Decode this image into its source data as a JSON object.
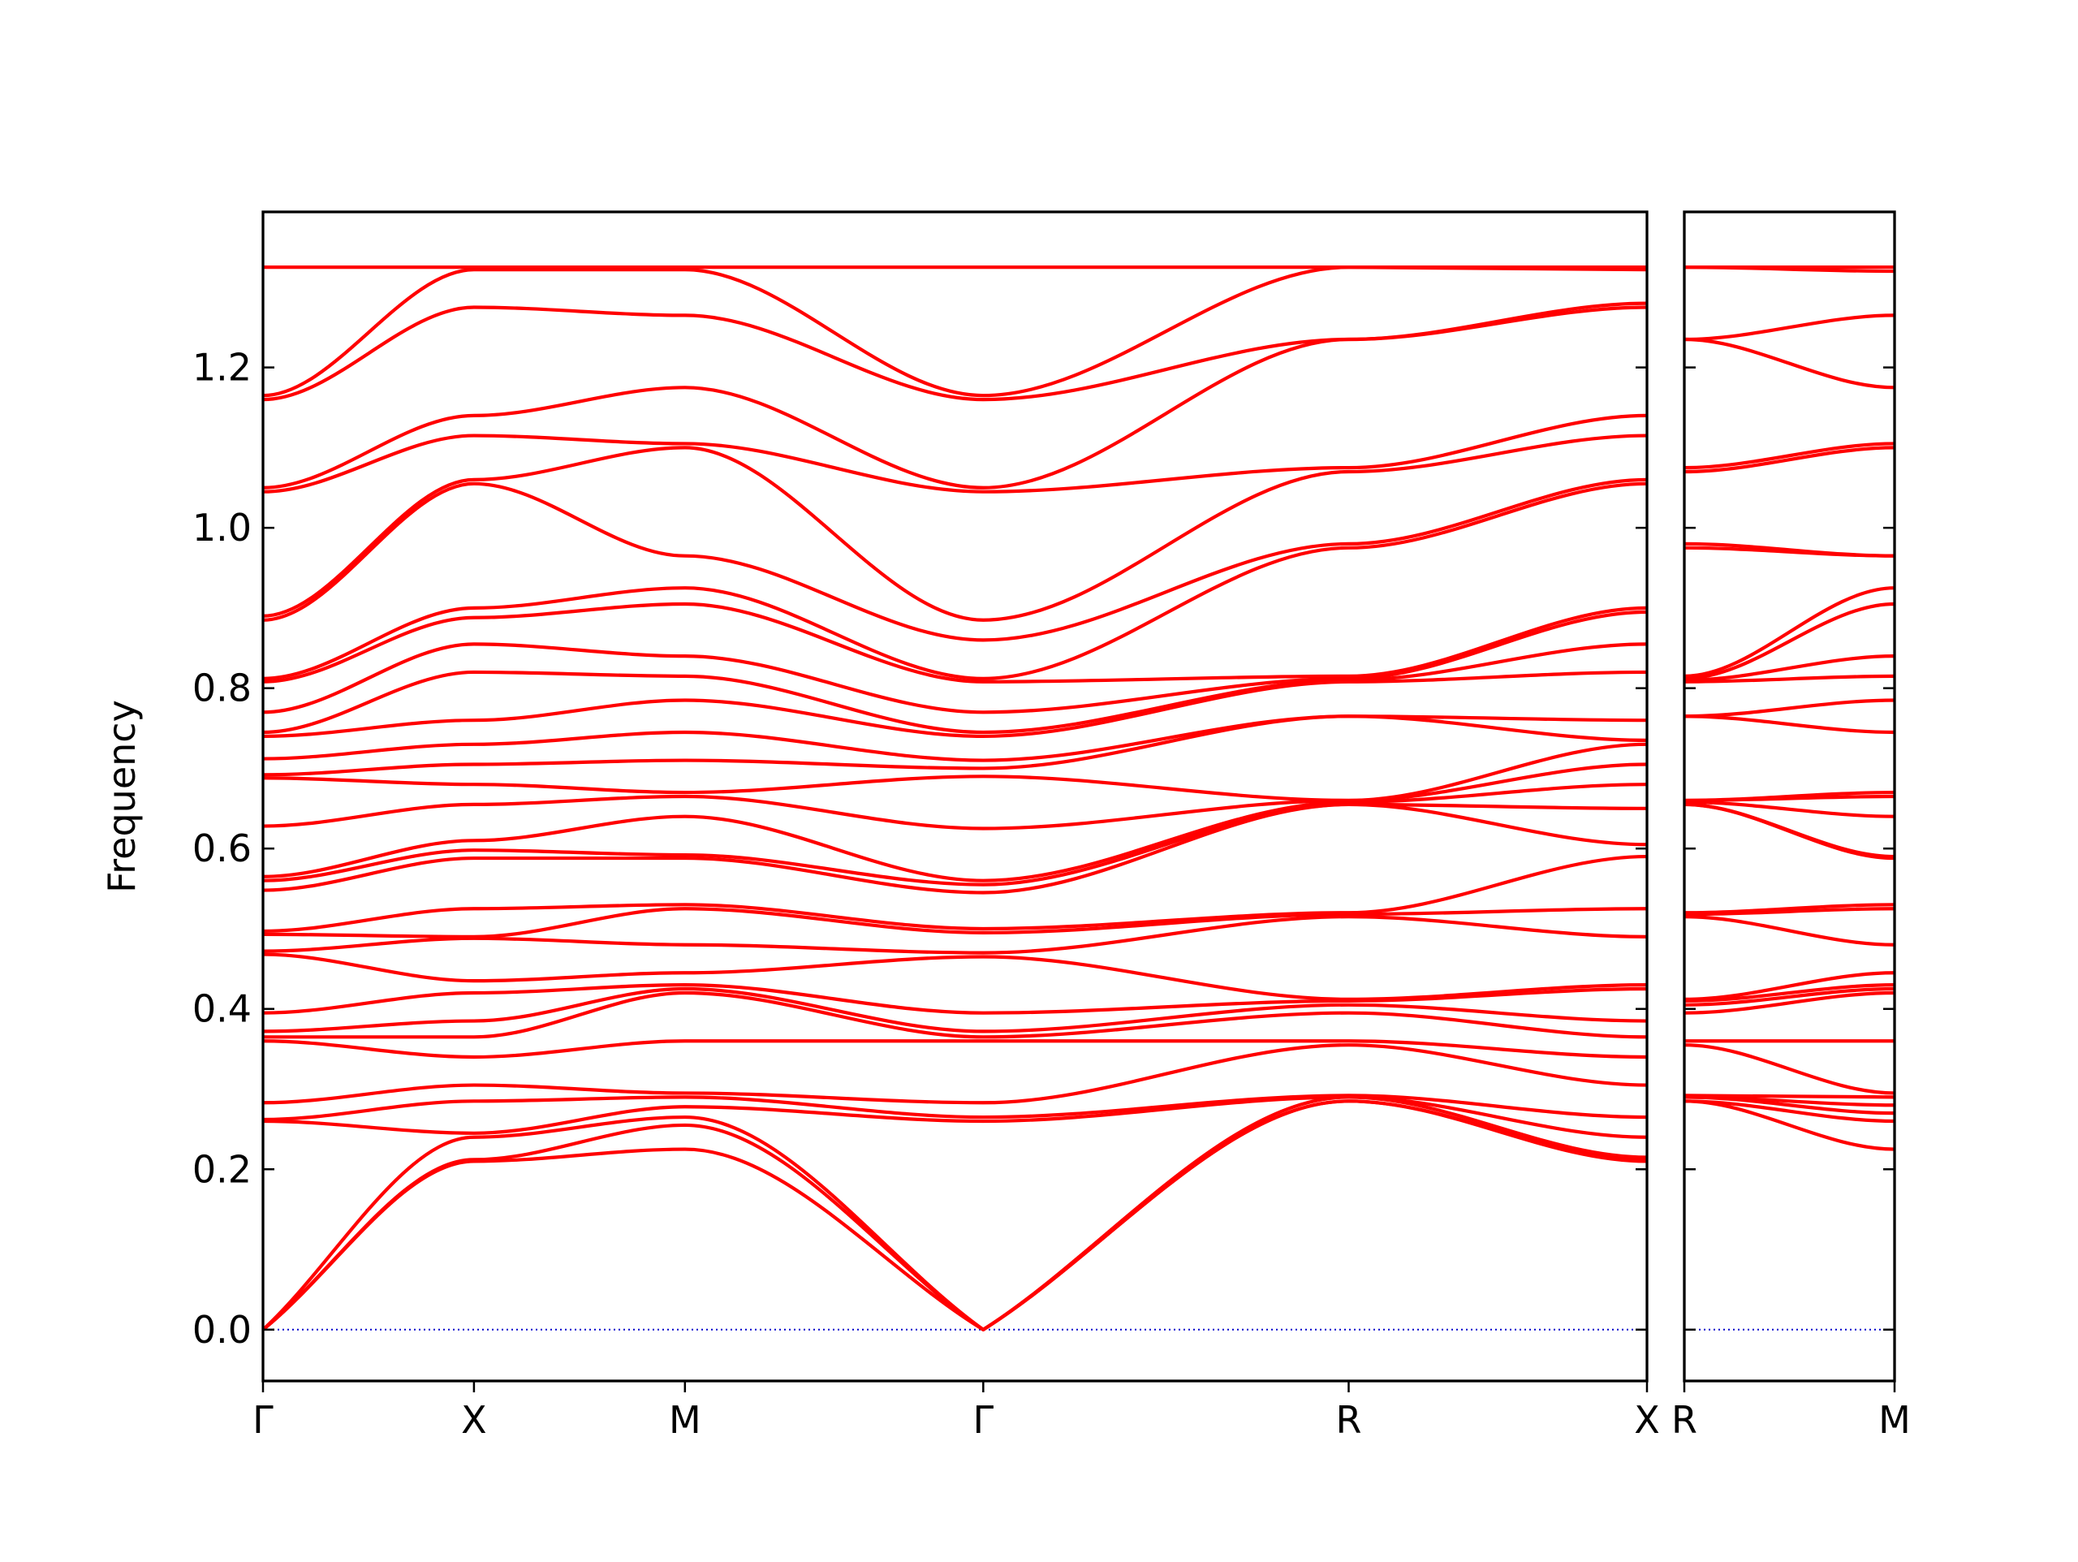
{
  "chart_data": [
    {
      "type": "line",
      "ylabel": "Frequency",
      "color": "#ff0000",
      "zero_line_color": "#0000cc",
      "x": [
        0,
        0.5,
        1.0,
        1.707,
        2.573,
        3.28
      ],
      "xlim": [
        0,
        3.28
      ],
      "xticks": [
        {
          "value": 0,
          "label": "Γ"
        },
        {
          "value": 0.5,
          "label": "X"
        },
        {
          "value": 1.0,
          "label": "M"
        },
        {
          "value": 1.707,
          "label": "Γ"
        },
        {
          "value": 2.573,
          "label": "R"
        },
        {
          "value": 3.28,
          "label": "X"
        }
      ],
      "ylim": [
        -0.064,
        1.394
      ],
      "yticks": [
        {
          "value": 0,
          "label": "0.0"
        },
        0.2,
        0.4,
        0.6,
        0.8,
        {
          "value": 1.0,
          "label": "1.0"
        },
        1.2
      ],
      "ytick_labels": true,
      "series": [
        {
          "values": [
            0,
            0.21,
            0.225,
            0,
            0.285,
            0.21
          ]
        },
        {
          "values": [
            0,
            0.212,
            0.255,
            0,
            0.285,
            0.212
          ]
        },
        {
          "values": [
            0,
            0.24,
            0.265,
            0,
            0.29,
            0.215
          ]
        },
        {
          "values": [
            0.26,
            0.245,
            0.278,
            0.26,
            0.29,
            0.24
          ]
        },
        {
          "values": [
            0.262,
            0.285,
            0.29,
            0.265,
            0.292,
            0.265
          ]
        },
        {
          "values": [
            0.283,
            0.305,
            0.295,
            0.283,
            0.355,
            0.305
          ]
        },
        {
          "values": [
            0.36,
            0.34,
            0.36,
            0.36,
            0.36,
            0.34
          ]
        },
        {
          "values": [
            0.365,
            0.365,
            0.42,
            0.365,
            0.395,
            0.365
          ]
        },
        {
          "values": [
            0.372,
            0.385,
            0.425,
            0.372,
            0.405,
            0.385
          ]
        },
        {
          "values": [
            0.395,
            0.42,
            0.43,
            0.395,
            0.41,
            0.425
          ]
        },
        {
          "values": [
            0.468,
            0.435,
            0.445,
            0.465,
            0.412,
            0.43
          ]
        },
        {
          "values": [
            0.472,
            0.488,
            0.48,
            0.47,
            0.515,
            0.49
          ]
        },
        {
          "values": [
            0.493,
            0.49,
            0.525,
            0.495,
            0.518,
            0.525
          ]
        },
        {
          "values": [
            0.497,
            0.525,
            0.53,
            0.5,
            0.52,
            0.59
          ]
        },
        {
          "values": [
            0.548,
            0.588,
            0.588,
            0.545,
            0.655,
            0.605
          ]
        },
        {
          "values": [
            0.56,
            0.598,
            0.592,
            0.555,
            0.655,
            0.65
          ]
        },
        {
          "values": [
            0.565,
            0.61,
            0.64,
            0.56,
            0.658,
            0.68
          ]
        },
        {
          "values": [
            0.628,
            0.655,
            0.665,
            0.625,
            0.66,
            0.705
          ]
        },
        {
          "values": [
            0.688,
            0.68,
            0.67,
            0.69,
            0.66,
            0.73
          ]
        },
        {
          "values": [
            0.692,
            0.705,
            0.71,
            0.7,
            0.765,
            0.735
          ]
        },
        {
          "values": [
            0.712,
            0.73,
            0.745,
            0.71,
            0.765,
            0.76
          ]
        },
        {
          "values": [
            0.74,
            0.76,
            0.785,
            0.74,
            0.808,
            0.82
          ]
        },
        {
          "values": [
            0.745,
            0.82,
            0.815,
            0.745,
            0.81,
            0.855
          ]
        },
        {
          "values": [
            0.77,
            0.855,
            0.84,
            0.77,
            0.812,
            0.895
          ]
        },
        {
          "values": [
            0.808,
            0.888,
            0.905,
            0.808,
            0.815,
            0.9
          ]
        },
        {
          "values": [
            0.812,
            0.9,
            0.925,
            0.812,
            0.975,
            1.055
          ]
        },
        {
          "values": [
            0.885,
            1.055,
            0.965,
            0.86,
            0.98,
            1.06
          ]
        },
        {
          "values": [
            0.89,
            1.06,
            1.1,
            0.885,
            1.07,
            1.115
          ]
        },
        {
          "values": [
            1.045,
            1.115,
            1.105,
            1.045,
            1.075,
            1.14
          ]
        },
        {
          "values": [
            1.05,
            1.14,
            1.175,
            1.05,
            1.235,
            1.275
          ]
        },
        {
          "values": [
            1.16,
            1.275,
            1.265,
            1.16,
            1.235,
            1.28
          ]
        },
        {
          "values": [
            1.165,
            1.322,
            1.322,
            1.165,
            1.325,
            1.322
          ]
        },
        {
          "values": [
            1.325,
            1.325,
            1.325,
            1.325,
            1.325,
            1.325
          ]
        }
      ]
    },
    {
      "type": "line",
      "color": "#ff0000",
      "zero_line_color": "#0000cc",
      "x": [
        0,
        0.5
      ],
      "xlim": [
        0,
        0.5
      ],
      "xticks": [
        {
          "value": 0,
          "label": "R"
        },
        {
          "value": 0.5,
          "label": "M"
        }
      ],
      "ylim": [
        -0.064,
        1.394
      ],
      "yticks": [
        0,
        0.2,
        0.4,
        0.6,
        0.8,
        1.0,
        1.2
      ],
      "ytick_labels": false,
      "series": [
        {
          "values": [
            0.285,
            0.225
          ]
        },
        {
          "values": [
            0.285,
            0.26
          ]
        },
        {
          "values": [
            0.29,
            0.27
          ]
        },
        {
          "values": [
            0.29,
            0.28
          ]
        },
        {
          "values": [
            0.292,
            0.29
          ]
        },
        {
          "values": [
            0.355,
            0.295
          ]
        },
        {
          "values": [
            0.36,
            0.36
          ]
        },
        {
          "values": [
            0.395,
            0.42
          ]
        },
        {
          "values": [
            0.405,
            0.425
          ]
        },
        {
          "values": [
            0.41,
            0.43
          ]
        },
        {
          "values": [
            0.412,
            0.445
          ]
        },
        {
          "values": [
            0.515,
            0.48
          ]
        },
        {
          "values": [
            0.518,
            0.525
          ]
        },
        {
          "values": [
            0.52,
            0.53
          ]
        },
        {
          "values": [
            0.655,
            0.588
          ]
        },
        {
          "values": [
            0.655,
            0.59
          ]
        },
        {
          "values": [
            0.658,
            0.64
          ]
        },
        {
          "values": [
            0.66,
            0.665
          ]
        },
        {
          "values": [
            0.66,
            0.67
          ]
        },
        {
          "values": [
            0.765,
            0.745
          ]
        },
        {
          "values": [
            0.765,
            0.785
          ]
        },
        {
          "values": [
            0.808,
            0.815
          ]
        },
        {
          "values": [
            0.81,
            0.84
          ]
        },
        {
          "values": [
            0.812,
            0.905
          ]
        },
        {
          "values": [
            0.815,
            0.925
          ]
        },
        {
          "values": [
            0.975,
            0.965
          ]
        },
        {
          "values": [
            0.98,
            0.965
          ]
        },
        {
          "values": [
            1.07,
            1.1
          ]
        },
        {
          "values": [
            1.075,
            1.105
          ]
        },
        {
          "values": [
            1.235,
            1.175
          ]
        },
        {
          "values": [
            1.235,
            1.265
          ]
        },
        {
          "values": [
            1.325,
            1.32
          ]
        },
        {
          "values": [
            1.325,
            1.325
          ]
        }
      ]
    }
  ]
}
